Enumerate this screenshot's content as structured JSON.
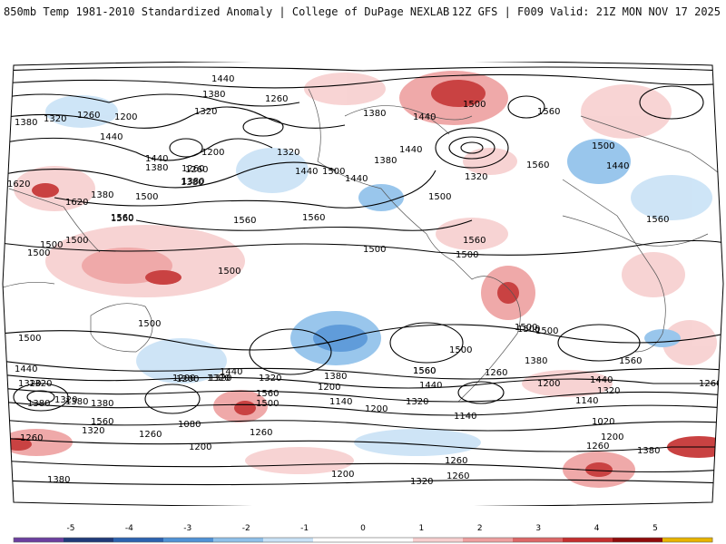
{
  "header": {
    "title": "850mb Temp 1981-2010 Standardized Anomaly | College of DuPage NEXLAB",
    "run_info": "12Z GFS | F009 Valid: 21Z MON NOV 17 2025"
  },
  "colorbar": {
    "ticks": [
      "-5",
      "-4",
      "-3",
      "-2",
      "-1",
      "0",
      "1",
      "2",
      "3",
      "4",
      "5"
    ],
    "colors": [
      "#6b3fa0",
      "#1f3a7a",
      "#2b62b0",
      "#4f92d6",
      "#8fc0ea",
      "#c9e2f6",
      "#ffffff",
      "#ffffff",
      "#f7cfcf",
      "#eea0a0",
      "#dd6767",
      "#c42e2e",
      "#8f0b0b",
      "#e8b400"
    ]
  },
  "contour_labels": {
    "l1": "1440",
    "l2": "1380",
    "l3": "1320",
    "l4": "1260",
    "l5": "1200",
    "l6": "1260",
    "l7": "1320",
    "l8": "1380",
    "l9": "1440",
    "l10": "1500",
    "l11": "1440",
    "l12": "1380",
    "l13": "1500",
    "l14": "1560",
    "l15": "1500",
    "l16": "1620",
    "l17": "1620",
    "l18": "1560",
    "l19": "1260",
    "l20": "1200",
    "l21": "1320",
    "l22": "1380",
    "l23": "1260",
    "l24": "1380",
    "l25": "1320",
    "l26": "1200",
    "l27": "1320",
    "l28": "1440",
    "l29": "1500",
    "l30": "1500",
    "l31": "1560",
    "l32": "1560",
    "l33": "1440",
    "l34": "1500",
    "l35": "1380",
    "l36": "1320",
    "l37": "1500",
    "l38": "1560",
    "l39": "1500",
    "l40": "1440",
    "l41": "1380",
    "l42": "1500",
    "l43": "1560",
    "l44": "1500",
    "l45": "1500",
    "l46": "1500",
    "l47": "1500",
    "l48": "1440",
    "l49": "1380",
    "l50": "1320",
    "l51": "1380",
    "l52": "1440",
    "l53": "1200",
    "l54": "1320",
    "l55": "1560",
    "l56": "1500",
    "l57": "1080",
    "l58": "1260",
    "l59": "1320",
    "l60": "1260",
    "l61": "1200",
    "l62": "1260",
    "l63": "1380",
    "l64": "1200",
    "l65": "1140",
    "l66": "1200",
    "l67": "1320",
    "l68": "1380",
    "l69": "1440",
    "l70": "1500",
    "l71": "1560",
    "l72": "1260",
    "l73": "1140",
    "l74": "1320",
    "l75": "1380",
    "l76": "1440",
    "l77": "1200",
    "l78": "1140",
    "l79": "1020",
    "l80": "1200",
    "l81": "1260",
    "l82": "1380",
    "l83": "1260",
    "l84": "1200",
    "l85": "1320",
    "l86": "1260",
    "l87": "1560",
    "l88": "1440",
    "l89": "1500",
    "l90": "1560",
    "l91": "1440",
    "l92": "1560",
    "l93": "1500",
    "l94": "1560",
    "l95": "1260",
    "l96": "1320",
    "l97": "1380",
    "l98": "1500",
    "l99": "1560",
    "l100": "1380",
    "l101": "1320"
  }
}
